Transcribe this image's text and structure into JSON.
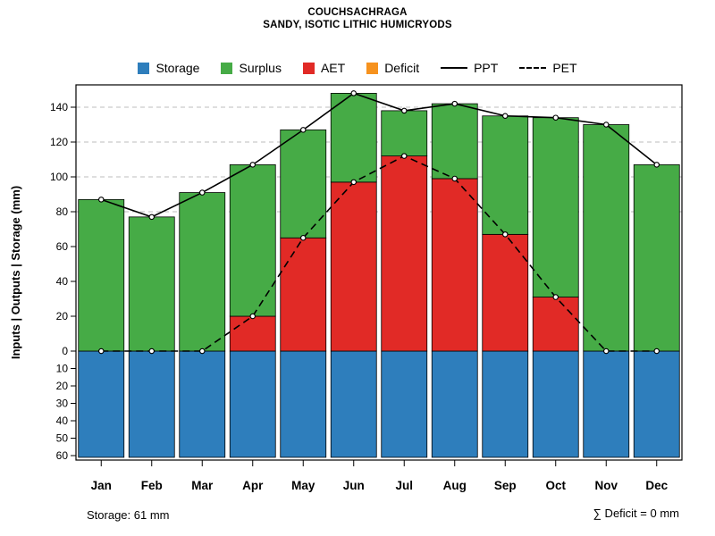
{
  "title": "COUCHSACHRAGA",
  "subtitle": "SANDY, ISOTIC LITHIC HUMICRYODS",
  "ylabel": "Inputs | Outputs | Storage  (mm)",
  "footer_left": "Storage: 61 mm",
  "footer_right": "∑ Deficit = 0 mm",
  "colors": {
    "storage": "#2e7ebc",
    "surplus": "#46ab46",
    "aet": "#e12a26",
    "deficit": "#f6921e",
    "line": "#000000",
    "grid": "#bcbcbc"
  },
  "legend": [
    {
      "label": "Storage",
      "type": "box",
      "color_key": "storage"
    },
    {
      "label": "Surplus",
      "type": "box",
      "color_key": "surplus"
    },
    {
      "label": "AET",
      "type": "box",
      "color_key": "aet"
    },
    {
      "label": "Deficit",
      "type": "box",
      "color_key": "deficit"
    },
    {
      "label": "PPT",
      "type": "line-solid"
    },
    {
      "label": "PET",
      "type": "line-dashed"
    }
  ],
  "chart_data": {
    "type": "bar",
    "title": "COUCHSACHRAGA",
    "subtitle": "SANDY, ISOTIC LITHIC HUMICRYODS",
    "xlabel": "",
    "ylabel": "Inputs | Outputs | Storage  (mm)",
    "categories": [
      "Jan",
      "Feb",
      "Mar",
      "Apr",
      "May",
      "Jun",
      "Jul",
      "Aug",
      "Sep",
      "Oct",
      "Nov",
      "Dec"
    ],
    "series": [
      {
        "name": "PPT",
        "style": "line-solid",
        "values": [
          87,
          77,
          91,
          107,
          127,
          148,
          138,
          142,
          135,
          134,
          130,
          107
        ]
      },
      {
        "name": "PET",
        "style": "line-dashed",
        "values": [
          0,
          0,
          0,
          20,
          65,
          97,
          112,
          99,
          67,
          31,
          0,
          0
        ]
      },
      {
        "name": "AET",
        "style": "bar-stack",
        "values": [
          0,
          0,
          0,
          20,
          65,
          97,
          112,
          99,
          67,
          31,
          0,
          0
        ]
      },
      {
        "name": "Surplus",
        "style": "bar-stack",
        "values": [
          87,
          77,
          91,
          87,
          62,
          51,
          26,
          43,
          68,
          103,
          130,
          107
        ]
      },
      {
        "name": "Deficit",
        "style": "bar-stack",
        "values": [
          0,
          0,
          0,
          0,
          0,
          0,
          0,
          0,
          0,
          0,
          0,
          0
        ]
      },
      {
        "name": "Storage",
        "style": "bar-below-axis",
        "values": [
          61,
          61,
          61,
          61,
          61,
          61,
          61,
          61,
          61,
          61,
          61,
          61
        ]
      }
    ],
    "y_upper_ticks": [
      0,
      20,
      40,
      60,
      80,
      100,
      120,
      140
    ],
    "y_lower_ticks": [
      10,
      20,
      30,
      40,
      50,
      60
    ],
    "gridlines_mm": [
      80,
      100,
      120,
      140
    ],
    "ylim": [
      -62.5,
      153
    ],
    "grid": "dashed horizontal",
    "legend_position": "top"
  }
}
